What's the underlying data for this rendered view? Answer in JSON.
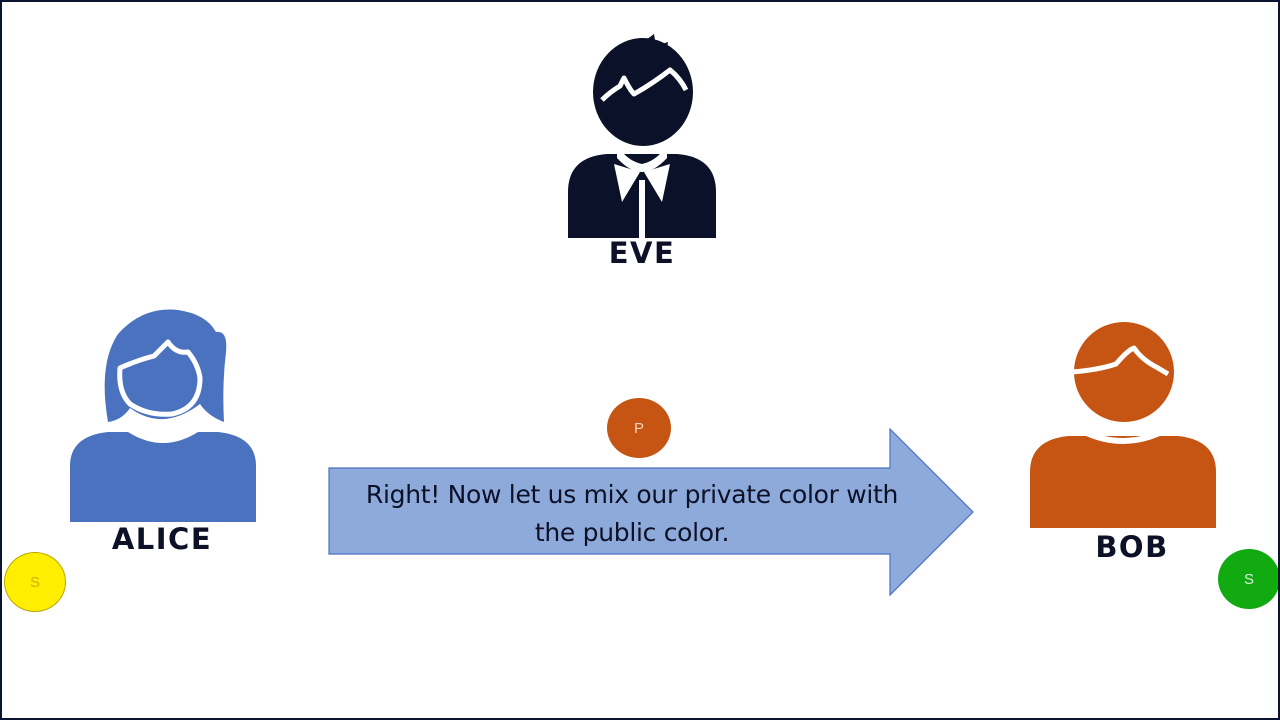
{
  "colors": {
    "eve": "#0a1128",
    "alice": "#4a72bf",
    "bob": "#c65413",
    "arrow_fill": "#8eaadb",
    "arrow_stroke": "#4a72bf",
    "secret_alice": "#ffee00",
    "secret_bob": "#11aa11",
    "public": "#c65413"
  },
  "people": {
    "eve": {
      "name": "EVE"
    },
    "alice": {
      "name": "ALICE"
    },
    "bob": {
      "name": "BOB"
    }
  },
  "tokens": {
    "alice_secret": {
      "label": "S"
    },
    "bob_secret": {
      "label": "S"
    },
    "public": {
      "label": "P"
    }
  },
  "message": {
    "line1": "Right! Now let us mix our private color with",
    "line2": "the public color."
  }
}
